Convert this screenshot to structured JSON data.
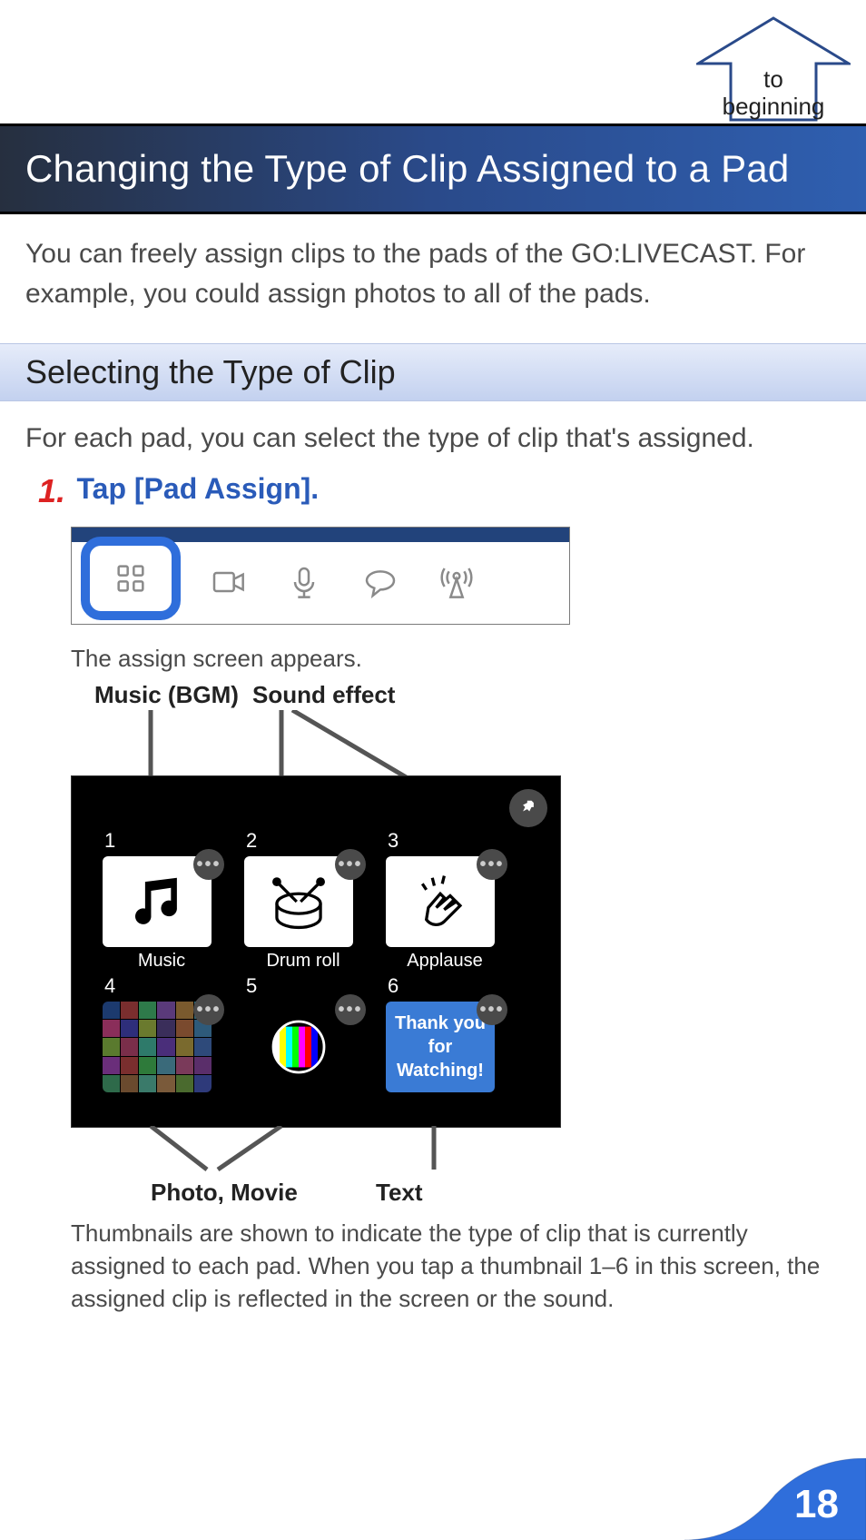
{
  "nav": {
    "to_beginning_l1": "to",
    "to_beginning_l2": "beginning"
  },
  "title": "Changing the Type of Clip Assigned to a Pad",
  "intro": "You can freely assign clips to the pads of the GO:LIVECAST. For example, you could assign photos to all of the pads.",
  "subheading": "Selecting the Type of Clip",
  "para2": "For each pad, you can select the type of clip that's assigned.",
  "step": {
    "num": "1.",
    "text": "Tap [Pad Assign]."
  },
  "toolbar": {
    "icons": [
      "grid",
      "camera",
      "mic",
      "chat",
      "antenna"
    ],
    "selected_index": 0,
    "header_color": "#22437b",
    "highlight_color": "#2f6edb"
  },
  "appears": "The assign screen appears.",
  "type_labels": {
    "music": "Music (BGM)",
    "sfx": "Sound effect",
    "photo_movie": "Photo, Movie",
    "text": "Text"
  },
  "assign": {
    "pin_icon": "pin",
    "pads": [
      {
        "n": "1",
        "kind": "music",
        "label": "Music"
      },
      {
        "n": "2",
        "kind": "drum",
        "label": "Drum roll"
      },
      {
        "n": "3",
        "kind": "clap",
        "label": "Applause"
      },
      {
        "n": "4",
        "kind": "photo",
        "label": ""
      },
      {
        "n": "5",
        "kind": "movie",
        "label": ""
      },
      {
        "n": "6",
        "kind": "thank",
        "label": "",
        "text_l1": "Thank you",
        "text_l2": "for",
        "text_l3": "Watching!"
      }
    ],
    "photo_grid_colors": [
      "#1c3a6e",
      "#7a2e2e",
      "#2e7a4a",
      "#5a3a7a",
      "#7a5a2e",
      "#2e6a7a",
      "#8a2e5a",
      "#2e2e7a",
      "#6a7a2e",
      "#3a2e5a",
      "#7a4a2e",
      "#2e5a7a",
      "#5a7a2e",
      "#7a2e4a",
      "#2e7a6a",
      "#4a2e7a",
      "#7a6a2e",
      "#2e4a7a",
      "#6a2e7a",
      "#7a2e2e",
      "#2e7a3a",
      "#3a6a7a",
      "#7a3a5a",
      "#5a2e6a",
      "#2e6a4a",
      "#6a4a2e",
      "#3a7a6a",
      "#7a5a3a",
      "#4a6a2e",
      "#2e3a7a"
    ],
    "movie_bars": [
      "#ffffff",
      "#ffff00",
      "#00ffff",
      "#00ff00",
      "#ff00ff",
      "#ff0000",
      "#0000ff",
      "#000000"
    ]
  },
  "thumb_para": "Thumbnails are shown to indicate the type of clip that is currently assigned to each pad. When you tap a thumbnail 1–6 in this screen, the assigned clip is reflected in the screen or the sound.",
  "page_number": "18",
  "colors": {
    "title_grad_from": "#262f3f",
    "title_grad_to": "#2f5fb0",
    "sub_grad_from": "#e6ecfa",
    "sub_grad_to": "#c3d1ef",
    "step_num": "#d22222",
    "step_text": "#2a5bb9",
    "body_text": "#4a4a4a",
    "pagenum_fill": "#2f6edb"
  }
}
